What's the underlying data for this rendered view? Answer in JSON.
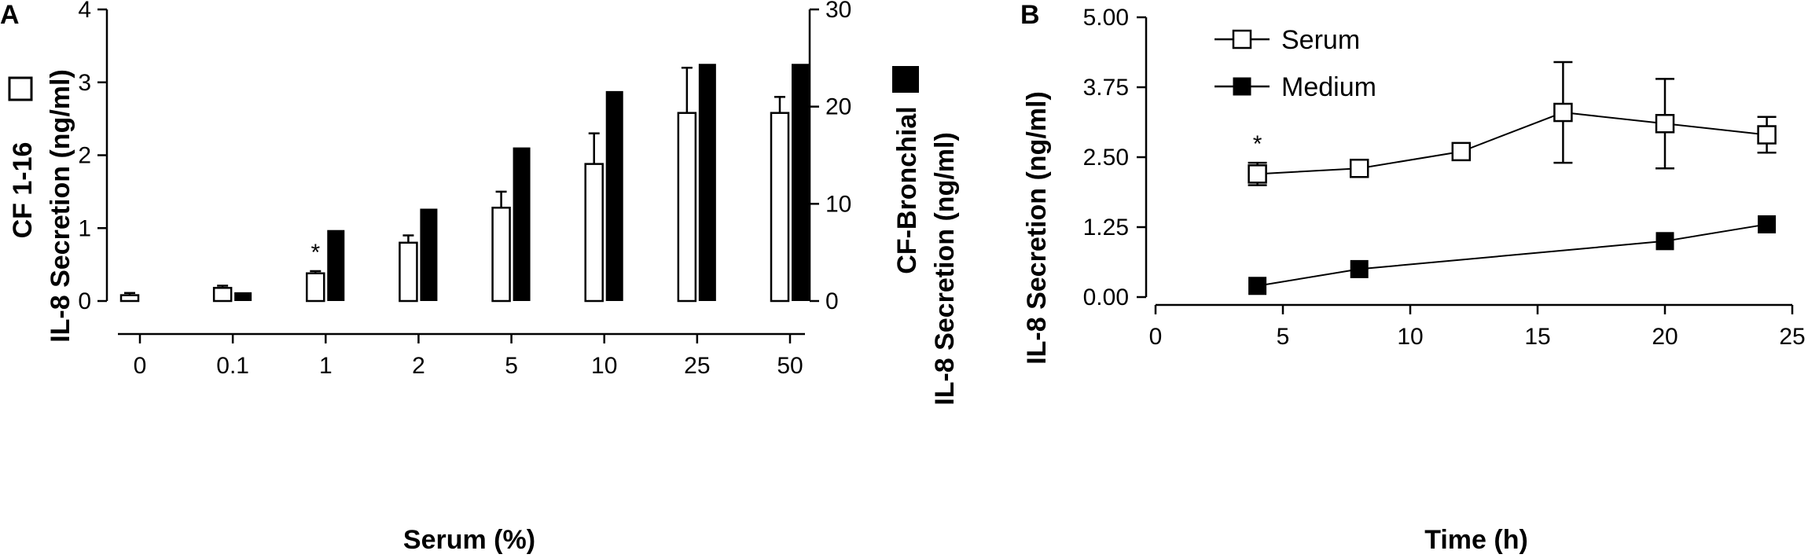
{
  "chart_data": [
    {
      "panel": "A",
      "type": "bar",
      "categories": [
        "0",
        "0.1",
        "1",
        "2",
        "5",
        "10",
        "25",
        "50"
      ],
      "xlabel": "Serum (%)",
      "ylabel_left_line1": "CF 1-16",
      "ylabel_left_line2": "IL-8 Secretion (ng/ml)",
      "ylabel_right_line1": "CF-Bronchial",
      "ylabel_right_line2": "IL-8 Secretion (ng/ml)",
      "ylim_left": [
        0,
        4
      ],
      "yticks_left": [
        "0",
        "1",
        "2",
        "3",
        "4"
      ],
      "ylim_right": [
        0,
        30
      ],
      "yticks_right": [
        "0",
        "10",
        "20",
        "30"
      ],
      "series": [
        {
          "axis": "left",
          "fill": "#ffffff",
          "values": [
            0.08,
            0.18,
            0.38,
            0.8,
            1.28,
            1.88,
            2.58,
            2.58
          ],
          "error": [
            0.03,
            0.03,
            0.03,
            0.1,
            0.22,
            0.42,
            0.62,
            0.22
          ]
        },
        {
          "axis": "right",
          "fill": "#000000",
          "values": [
            0,
            0.9,
            7.3,
            9.5,
            15.8,
            21.6,
            24.4,
            24.4
          ]
        }
      ],
      "annotations": [
        {
          "text": "*",
          "category": "1"
        }
      ]
    },
    {
      "panel": "B",
      "type": "line",
      "xlabel": "Time (h)",
      "ylabel": "IL-8 Secretion (ng/ml)",
      "xlim": [
        0,
        25
      ],
      "xticks": [
        "0",
        "5",
        "10",
        "15",
        "20",
        "25"
      ],
      "ylim": [
        0,
        5
      ],
      "yticks": [
        "0.00",
        "1.25",
        "2.50",
        "3.75",
        "5.00"
      ],
      "legend_position": "top-left",
      "series": [
        {
          "name": "Serum",
          "marker": "open-square",
          "x": [
            4,
            8,
            12,
            16,
            20,
            24
          ],
          "y": [
            2.2,
            2.3,
            2.6,
            3.3,
            3.1,
            2.9
          ],
          "error": [
            0.2,
            0.05,
            0.05,
            0.9,
            0.8,
            0.32
          ]
        },
        {
          "name": "Medium",
          "marker": "filled-square",
          "x": [
            4,
            8,
            20,
            24
          ],
          "y": [
            0.2,
            0.5,
            1.0,
            1.3
          ]
        }
      ],
      "annotations": [
        {
          "text": "*",
          "x": 4
        }
      ]
    }
  ]
}
